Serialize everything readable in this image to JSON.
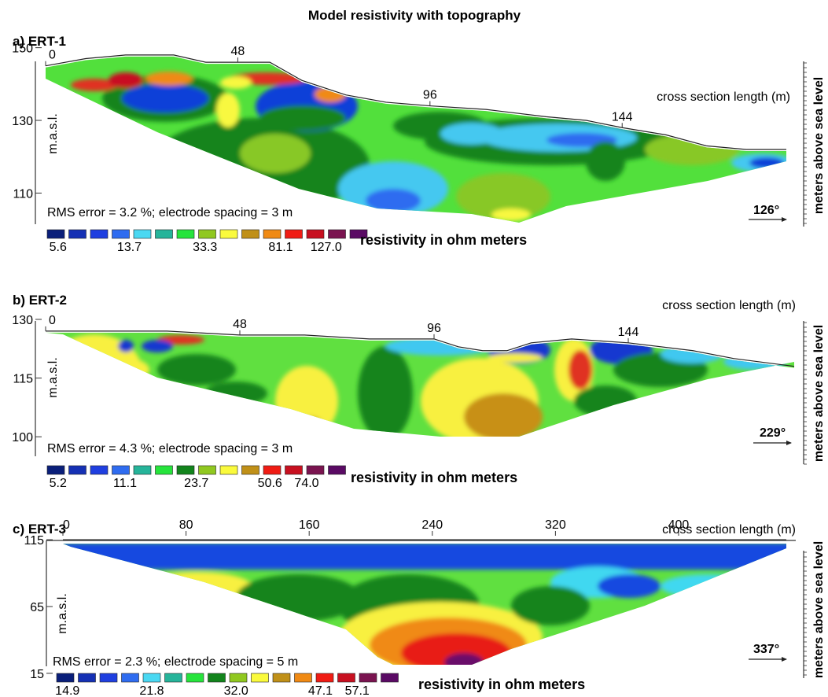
{
  "figure_title": "Model resistivity with topography",
  "right_axis_label": "meters above sea level",
  "colors": {
    "palette": [
      "#0a1f7a",
      "#1530b4",
      "#1f3fe0",
      "#2f6cf0",
      "#4ad8f2",
      "#26b49a",
      "#26e43c",
      "#12841c",
      "#90c820",
      "#fafa3c",
      "#c09018",
      "#f08a14",
      "#f01c14",
      "#c81020",
      "#7a1450",
      "#5a0a64"
    ],
    "ert1": {
      "base": "#52e03c",
      "accent1": "#1040d8",
      "accent2": "#12841c",
      "accent3": "#44c8f0",
      "accent4": "#e03020",
      "accent5": "#f8f840",
      "accent6": "#88c828"
    },
    "ert2": {
      "base": "#60e040",
      "accent1": "#1438d0",
      "accent2": "#12841c",
      "accent3": "#f8f040",
      "accent4": "#c89018",
      "accent5": "#e03020",
      "accent6": "#40c8f0"
    },
    "ert3": {
      "base": "#60e040",
      "accent1": "#1848e0",
      "accent2": "#12841c",
      "accent3": "#f8f040",
      "accent4": "#f08a14",
      "accent5": "#e81c14",
      "accent6": "#40d8f0",
      "accent7": "#6a106a"
    }
  },
  "chart_data": [
    {
      "type": "heatmap",
      "panel_label": "a) ERT-1",
      "title": "Model resistivity with topography",
      "ylabel": "m.a.s.l.",
      "xlabel": "cross section length (m)",
      "x_ticks": [
        "0",
        "48",
        "96",
        "144"
      ],
      "y_ticks": [
        "150",
        "130",
        "110"
      ],
      "x_range": [
        0,
        185
      ],
      "y_range": [
        101,
        151
      ],
      "topography": {
        "x": [
          0,
          10,
          20,
          32,
          40,
          48,
          56,
          64,
          75,
          85,
          96,
          110,
          125,
          135,
          144,
          155,
          165,
          175,
          185
        ],
        "y": [
          145,
          147,
          148,
          148,
          146,
          146,
          146,
          141,
          137,
          135,
          134,
          133,
          131,
          130,
          128,
          126,
          123,
          122,
          122
        ]
      },
      "rms_note": "RMS error = 3.2 %; electrode spacing = 3 m",
      "bearing": "126°",
      "legend_label": "resistivity in ohm meters",
      "legend_ticks": [
        "5.6",
        "13.7",
        "33.3",
        "81.1",
        "127.0"
      ]
    },
    {
      "type": "heatmap",
      "panel_label": "b) ERT-2",
      "ylabel": "m.a.s.l.",
      "xlabel": "cross section length (m)",
      "x_ticks": [
        "0",
        "48",
        "96",
        "144"
      ],
      "y_ticks": [
        "130",
        "115",
        "100"
      ],
      "x_range": [
        0,
        185
      ],
      "y_range": [
        92,
        131
      ],
      "topography": {
        "x": [
          0,
          15,
          30,
          48,
          64,
          80,
          96,
          102,
          108,
          114,
          120,
          130,
          144,
          160,
          170,
          185
        ],
        "y": [
          127,
          127,
          127,
          126,
          126,
          125,
          125,
          123,
          122,
          122,
          124,
          125,
          124,
          122,
          120,
          118
        ]
      },
      "rms_note": "RMS error = 4.3 %; electrode spacing = 3 m",
      "bearing": "229°",
      "legend_label": "resistivity in ohm meters",
      "legend_ticks": [
        "5.2",
        "11.1",
        "23.7",
        "50.6",
        "74.0"
      ]
    },
    {
      "type": "heatmap",
      "panel_label": "c) ERT-3",
      "ylabel": "m.a.s.l.",
      "xlabel": "cross section length (m)",
      "x_ticks": [
        "0",
        "80",
        "160",
        "240",
        "320",
        "400"
      ],
      "y_ticks": [
        "115",
        "65",
        "15"
      ],
      "x_range": [
        0,
        470
      ],
      "y_range": [
        12,
        118
      ],
      "topography": {
        "x": [
          0,
          470
        ],
        "y": [
          115,
          115
        ]
      },
      "rms_note": "RMS error = 2.3 %; electrode spacing = 5 m",
      "bearing": "337°",
      "legend_label": "resistivity in ohm meters",
      "legend_ticks": [
        "14.9",
        "21.8",
        "32.0",
        "47.1",
        "57.1"
      ]
    }
  ]
}
